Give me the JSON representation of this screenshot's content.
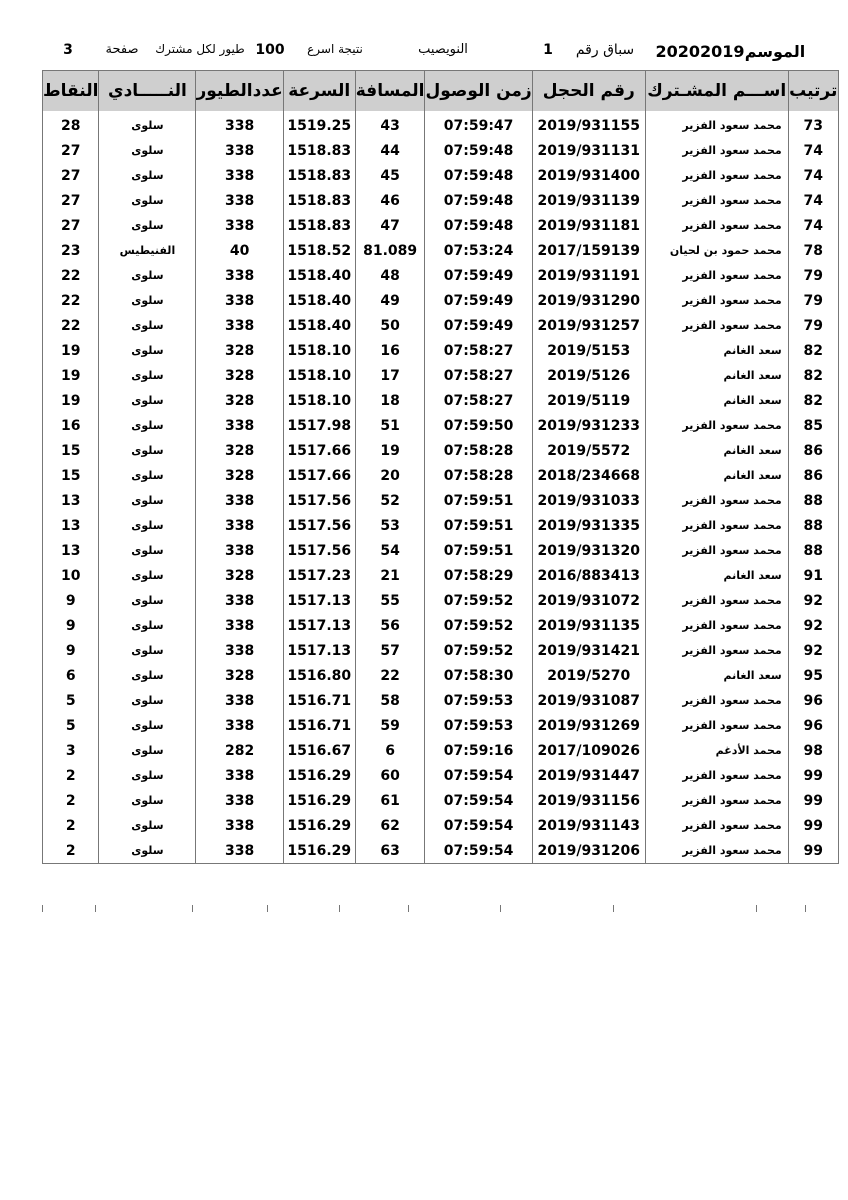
{
  "header": {
    "season_label": "الموسم",
    "season": "20202019",
    "race_label": "سباق رقم",
    "race_no": "1",
    "location": "النويصيب",
    "result_label": "نتيجة اسرع",
    "birds_count": "100",
    "birds_label": "طيور لكل مشترك",
    "page_label": "صفحة",
    "page_no": "3"
  },
  "table": {
    "columns": [
      "ترتيب",
      "اســـم المشـترك",
      "رقم الحجل",
      "زمن الوصول",
      "المسافة",
      "السرعة",
      "عددالطيور",
      "النـــــادي",
      "النقاط"
    ],
    "rows": [
      [
        "73",
        "محمد سعود الفزير",
        "2019/931155",
        "07:59:47",
        "43",
        "1519.25",
        "338",
        "سلوى",
        "28"
      ],
      [
        "74",
        "محمد سعود الفزير",
        "2019/931131",
        "07:59:48",
        "44",
        "1518.83",
        "338",
        "سلوى",
        "27"
      ],
      [
        "74",
        "محمد سعود الفزير",
        "2019/931400",
        "07:59:48",
        "45",
        "1518.83",
        "338",
        "سلوى",
        "27"
      ],
      [
        "74",
        "محمد سعود الفزير",
        "2019/931139",
        "07:59:48",
        "46",
        "1518.83",
        "338",
        "سلوى",
        "27"
      ],
      [
        "74",
        "محمد سعود الفزير",
        "2019/931181",
        "07:59:48",
        "47",
        "1518.83",
        "338",
        "سلوى",
        "27"
      ],
      [
        "78",
        "محمد حمود بن لحيان",
        "2017/159139",
        "07:53:24",
        "81.089",
        "1518.52",
        "40",
        "الفنيطيس",
        "23"
      ],
      [
        "79",
        "محمد سعود الفزير",
        "2019/931191",
        "07:59:49",
        "48",
        "1518.40",
        "338",
        "سلوى",
        "22"
      ],
      [
        "79",
        "محمد سعود الفزير",
        "2019/931290",
        "07:59:49",
        "49",
        "1518.40",
        "338",
        "سلوى",
        "22"
      ],
      [
        "79",
        "محمد سعود الفزير",
        "2019/931257",
        "07:59:49",
        "50",
        "1518.40",
        "338",
        "سلوى",
        "22"
      ],
      [
        "82",
        "سعد الغانم",
        "2019/5153",
        "07:58:27",
        "16",
        "1518.10",
        "328",
        "سلوى",
        "19"
      ],
      [
        "82",
        "سعد الغانم",
        "2019/5126",
        "07:58:27",
        "17",
        "1518.10",
        "328",
        "سلوى",
        "19"
      ],
      [
        "82",
        "سعد الغانم",
        "2019/5119",
        "07:58:27",
        "18",
        "1518.10",
        "328",
        "سلوى",
        "19"
      ],
      [
        "85",
        "محمد سعود الفزير",
        "2019/931233",
        "07:59:50",
        "51",
        "1517.98",
        "338",
        "سلوى",
        "16"
      ],
      [
        "86",
        "سعد الغانم",
        "2019/5572",
        "07:58:28",
        "19",
        "1517.66",
        "328",
        "سلوى",
        "15"
      ],
      [
        "86",
        "سعد الغانم",
        "2018/234668",
        "07:58:28",
        "20",
        "1517.66",
        "328",
        "سلوى",
        "15"
      ],
      [
        "88",
        "محمد سعود الفزير",
        "2019/931033",
        "07:59:51",
        "52",
        "1517.56",
        "338",
        "سلوى",
        "13"
      ],
      [
        "88",
        "محمد سعود الفزير",
        "2019/931335",
        "07:59:51",
        "53",
        "1517.56",
        "338",
        "سلوى",
        "13"
      ],
      [
        "88",
        "محمد سعود الفزير",
        "2019/931320",
        "07:59:51",
        "54",
        "1517.56",
        "338",
        "سلوى",
        "13"
      ],
      [
        "91",
        "سعد الغانم",
        "2016/883413",
        "07:58:29",
        "21",
        "1517.23",
        "328",
        "سلوى",
        "10"
      ],
      [
        "92",
        "محمد سعود الفزير",
        "2019/931072",
        "07:59:52",
        "55",
        "1517.13",
        "338",
        "سلوى",
        "9"
      ],
      [
        "92",
        "محمد سعود الفزير",
        "2019/931135",
        "07:59:52",
        "56",
        "1517.13",
        "338",
        "سلوى",
        "9"
      ],
      [
        "92",
        "محمد سعود الفزير",
        "2019/931421",
        "07:59:52",
        "57",
        "1517.13",
        "338",
        "سلوى",
        "9"
      ],
      [
        "95",
        "سعد الغانم",
        "2019/5270",
        "07:58:30",
        "22",
        "1516.80",
        "328",
        "سلوى",
        "6"
      ],
      [
        "96",
        "محمد سعود الفزير",
        "2019/931087",
        "07:59:53",
        "58",
        "1516.71",
        "338",
        "سلوى",
        "5"
      ],
      [
        "96",
        "محمد سعود الفزير",
        "2019/931269",
        "07:59:53",
        "59",
        "1516.71",
        "338",
        "سلوى",
        "5"
      ],
      [
        "98",
        "محمد الأدغم",
        "2017/109026",
        "07:59:16",
        "6",
        "1516.67",
        "282",
        "سلوى",
        "3"
      ],
      [
        "99",
        "محمد سعود الفزير",
        "2019/931447",
        "07:59:54",
        "60",
        "1516.29",
        "338",
        "سلوى",
        "2"
      ],
      [
        "99",
        "محمد سعود الفزير",
        "2019/931156",
        "07:59:54",
        "61",
        "1516.29",
        "338",
        "سلوى",
        "2"
      ],
      [
        "99",
        "محمد سعود الفزير",
        "2019/931143",
        "07:59:54",
        "62",
        "1516.29",
        "338",
        "سلوى",
        "2"
      ],
      [
        "99",
        "محمد سعود الفزير",
        "2019/931206",
        "07:59:54",
        "63",
        "1516.29",
        "338",
        "سلوى",
        "2"
      ]
    ]
  }
}
